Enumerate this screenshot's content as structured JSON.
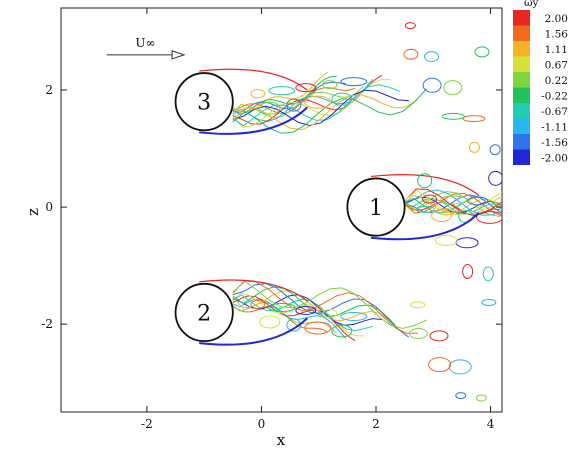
{
  "chart_data": {
    "type": "contour",
    "title": "",
    "xlabel": "x",
    "ylabel": "z",
    "xlim": [
      -3.5,
      4.2
    ],
    "ylim": [
      -3.5,
      3.4
    ],
    "x_ticks": [
      "-2",
      "0",
      "2",
      "4"
    ],
    "y_ticks": [
      "-2",
      "0",
      "2"
    ],
    "x_tick_values": [
      -2,
      0,
      2,
      4
    ],
    "y_tick_values": [
      -2,
      0,
      2
    ],
    "legend": {
      "title": "ωy",
      "placement": "top-right",
      "levels": [
        "2.00",
        "1.56",
        "1.11",
        "0.67",
        "0.22",
        "-0.22",
        "-0.67",
        "-1.11",
        "-1.56",
        "-2.00"
      ],
      "colors": [
        "#e8281e",
        "#f26a1c",
        "#f6b32a",
        "#d6e23a",
        "#7ed63b",
        "#22c45a",
        "#21cfb0",
        "#2cb6ee",
        "#2f74e8",
        "#1f27d6"
      ]
    },
    "cylinders": [
      {
        "label": "1",
        "x": 2.0,
        "z": 0.0,
        "radius": 0.5
      },
      {
        "label": "2",
        "x": -1.0,
        "z": -1.8,
        "radius": 0.5
      },
      {
        "label": "3",
        "x": -1.0,
        "z": 1.8,
        "radius": 0.5
      }
    ],
    "flow_label": "U∞",
    "flow_arrow": {
      "x_start": -2.7,
      "x_end": -1.35,
      "z": 2.6
    }
  }
}
